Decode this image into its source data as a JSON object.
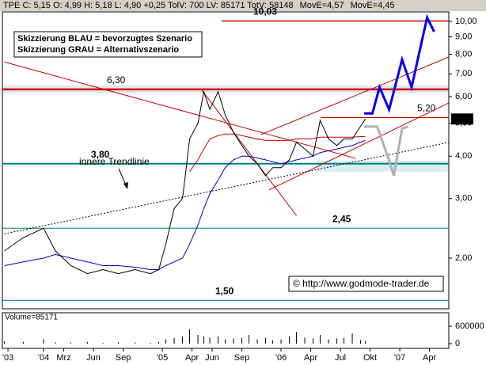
{
  "chart_data": {
    "type": "line",
    "header": {
      "text": "TPE C: 5,15 O: 4,99 H: 5,18 L: 4,90 +0,25 TolV: 700 LV: 85171 TotV: 58148"
    },
    "legend_box": [
      "Skizzierung BLAU = bevorzugtes Szenario",
      "Skizzierung GRAU = Alternativszenario"
    ],
    "trend_label": "innere Trendlinie",
    "copyright": "© http://www.godmode-trader.de",
    "log_scale": true,
    "x": [
      2003.67,
      2003.83,
      2004.0,
      2004.1,
      2004.23,
      2004.37,
      2004.5,
      2004.63,
      2004.77,
      2004.9,
      2004.97,
      2005.03,
      2005.1,
      2005.17,
      2005.23,
      2005.3,
      2005.35,
      2005.4,
      2005.47,
      2005.53,
      2005.6,
      2005.67,
      2005.73,
      2005.8,
      2005.87,
      2005.93,
      2006.0,
      2006.07,
      2006.13,
      2006.2,
      2006.27,
      2006.33,
      2006.4,
      2006.47,
      2006.53,
      2006.6,
      2006.67,
      2006.71
    ],
    "series": [
      {
        "color": "#000000",
        "values": [
          2.1,
          2.3,
          2.45,
          2.1,
          1.9,
          1.8,
          1.85,
          1.8,
          1.85,
          1.8,
          1.85,
          2.2,
          2.8,
          3.0,
          4.5,
          5.0,
          6.2,
          5.5,
          6.2,
          5.3,
          4.7,
          4.3,
          4.0,
          3.8,
          3.5,
          3.7,
          3.7,
          3.9,
          4.4,
          4.2,
          4.0,
          5.1,
          4.5,
          4.3,
          4.5,
          4.5,
          4.9,
          5.15
        ]
      },
      {
        "name": "MovE=4,57",
        "color": "#cc0000",
        "values": [
          null,
          null,
          null,
          null,
          null,
          null,
          null,
          null,
          null,
          null,
          null,
          null,
          null,
          null,
          3.6,
          3.9,
          4.2,
          4.5,
          4.6,
          4.65,
          4.65,
          4.6,
          4.55,
          4.5,
          4.45,
          4.45,
          4.45,
          4.45,
          4.5,
          4.5,
          4.5,
          4.55,
          4.55,
          4.55,
          4.55,
          4.55,
          4.57,
          4.57
        ]
      },
      {
        "name": "MovE=4,45",
        "color": "#0000cc",
        "values": [
          1.9,
          1.95,
          2.0,
          2.05,
          2.0,
          1.95,
          1.9,
          1.9,
          1.88,
          1.85,
          1.85,
          1.9,
          1.95,
          2.0,
          2.2,
          2.5,
          2.8,
          3.1,
          3.4,
          3.7,
          3.9,
          4.0,
          4.0,
          3.95,
          3.9,
          3.85,
          3.8,
          3.85,
          3.9,
          3.95,
          4.0,
          4.1,
          4.15,
          4.2,
          4.25,
          4.3,
          4.4,
          4.45
        ]
      }
    ],
    "scenarios": [
      {
        "color": "#0000ee",
        "x": [
          2006.7,
          2006.77,
          2006.83,
          2006.91,
          2007.02,
          2007.1,
          2007.23,
          2007.29
        ],
        "values": [
          5.35,
          5.35,
          6.39,
          5.49,
          7.72,
          6.39,
          10.27,
          9.32
        ]
      },
      {
        "color": "#b0b0b0",
        "x": [
          2006.7,
          2006.81,
          2006.9,
          2006.95,
          2007.02,
          2007.07
        ],
        "values": [
          4.89,
          4.89,
          3.98,
          3.5,
          4.83,
          4.89
        ]
      }
    ],
    "trendlines": [
      {
        "color": "#cc0000",
        "x": [
          2003.67,
          2006.63
        ],
        "values": [
          7.59,
          3.94
        ]
      },
      {
        "color": "#cc0000",
        "x": [
          2005.83,
          2007.41
        ],
        "values": [
          4.63,
          7.84
        ]
      },
      {
        "color": "#cc0000",
        "x": [
          2005.9,
          2007.41
        ],
        "values": [
          3.18,
          5.74
        ]
      },
      {
        "color": "#cc0000",
        "x": [
          2005.33,
          2006.13
        ],
        "values": [
          6.29,
          2.67
        ]
      },
      {
        "color": "#000000",
        "x": [
          2003.67,
          2007.41
        ],
        "values": [
          2.36,
          4.39
        ]
      }
    ],
    "levels": [
      {
        "value": 10.03,
        "label": "10,03",
        "color": "#cc0000"
      },
      {
        "value": 6.3,
        "label": "6,30",
        "color": "#cc0000"
      },
      {
        "value": 3.8,
        "label": "3,80",
        "color": "#008080"
      },
      {
        "value": 2.45,
        "label": "2,45",
        "color": "#008080"
      },
      {
        "value": 1.5,
        "label": "1,50",
        "color": "#008080"
      },
      {
        "value": 5.2,
        "label": "5,20",
        "color": "#cc0000"
      }
    ],
    "last": {
      "value": 5.15,
      "label": "5,15"
    },
    "xlim": [
      2003.653,
      2007.413
    ],
    "xticks": [
      {
        "value": 2003.7,
        "label": "'03"
      },
      {
        "value": 2004.0,
        "label": "'04"
      },
      {
        "value": 2004.17,
        "label": "Mrz"
      },
      {
        "value": 2004.42,
        "label": "Jun"
      },
      {
        "value": 2004.67,
        "label": "Sep"
      },
      {
        "value": 2005.0,
        "label": "'05"
      },
      {
        "value": 2005.25,
        "label": "Apr"
      },
      {
        "value": 2005.42,
        "label": "Jun"
      },
      {
        "value": 2005.67,
        "label": "Sep"
      },
      {
        "value": 2006.0,
        "label": "'06"
      },
      {
        "value": 2006.25,
        "label": "Apr"
      },
      {
        "value": 2006.5,
        "label": "Jul"
      },
      {
        "value": 2006.75,
        "label": "Okt"
      },
      {
        "value": 2007.0,
        "label": "'07"
      },
      {
        "value": 2007.25,
        "label": "Apr"
      }
    ],
    "ylim": [
      1.417,
      10.67
    ],
    "yticks": [
      {
        "value": 2,
        "label": "2,00"
      },
      {
        "value": 3,
        "label": "3,00"
      },
      {
        "value": 4,
        "label": "4,00"
      },
      {
        "value": 5,
        "label": "5,00"
      },
      {
        "value": 6,
        "label": "6,00"
      },
      {
        "value": 7,
        "label": "7,00"
      },
      {
        "value": 8,
        "label": "8,00"
      },
      {
        "value": 9,
        "label": "9,00"
      },
      {
        "value": 10,
        "label": "10,00"
      }
    ],
    "volume": {
      "title": "Volume=85171",
      "color": "#000000",
      "values": [
        80000,
        60000,
        150000,
        50000,
        40000,
        60000,
        30000,
        50000,
        40000,
        30000,
        60000,
        150000,
        200000,
        250000,
        500000,
        300000,
        250000,
        200000,
        250000,
        150000,
        180000,
        200000,
        300000,
        150000,
        200000,
        120000,
        150000,
        250000,
        400000,
        200000,
        180000,
        300000,
        150000,
        180000,
        200000,
        350000,
        120000,
        85171
      ],
      "ylim": [
        0,
        930000
      ],
      "yticks": [
        0,
        600000
      ]
    }
  }
}
